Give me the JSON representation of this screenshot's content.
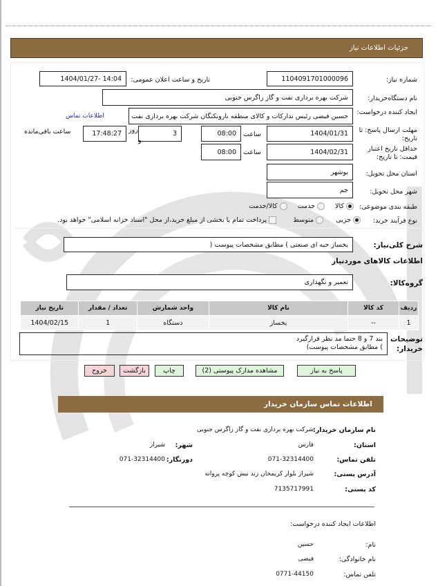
{
  "header": {
    "title": "جزئیات اطلاعات نیاز"
  },
  "form": {
    "need_number_label": "شماره نیاز:",
    "need_number": "1104091701000096",
    "announce_label": "تاریخ و ساعت اعلان عمومی:",
    "announce_value": "1404/01/27- 14:04",
    "buyer_label": "نام دستگاه‌خریدار:",
    "buyer_value": "شرکت بهره برداری نفت و گاز زاگرس جنوبی",
    "creator_label": "ایجاد کننده درخواست:",
    "creator_value": "حسین فیضی رئیس تدارکات و کالای منطقه نارونکنگان شرکت بهره برداری نفت و گاز زاگرس جنوبی",
    "creator_link": "اطلاعات تماس",
    "deadline_label": "مهلت ارسال پاسخ: تا تاریخ:",
    "deadline_date": "1404/01/31",
    "time_label": "ساعت",
    "deadline_time": "08:00",
    "days_value": "3",
    "days_label": "روز",
    "and_label": "و",
    "remaining_time": "17:48:27",
    "remaining_label": "ساعت باقی‌مانده",
    "validity_label": "حداقل تاریخ اعتبار قیمت: تا تاریخ:",
    "validity_date": "1404/02/31",
    "validity_time": "08:00",
    "province_label": "استان محل تحویل:",
    "province_value": "بوشهر",
    "city_label": "شهر محل تحویل:",
    "city_value": "جم",
    "category_label": "طبقه بندی موضوعی:",
    "category_options": [
      "کالا",
      "خدمت",
      "کالا/خدمت"
    ],
    "category_selected": "کالا",
    "process_label": "نوع فرآیند خرید:",
    "process_options": [
      "جزیی",
      "متوسط"
    ],
    "process_selected": "جزیی",
    "payment_note": "پرداخت تمام یا بخشی از مبلغ خرید،از محل \"اسناد خزانه اسلامی\" خواهد بود.",
    "summary_label": "شرح کلی‌نیاز:",
    "summary_value": "یخساز حبه ای صنعتی ) مطابق مشخصات پیوست (",
    "goods_section_title": "اطلاعات کالاهای موردنیاز",
    "goods_group_label": "گروه‌کالا:",
    "goods_group_value": "تعمیر و نگهداری",
    "buyer_notes_label": "توضیحات خریدار:",
    "buyer_notes_lines": [
      "بند 7 و 8 حتما مد نظر قرارگیرد",
      ") مطابق مشخصات پیوست)"
    ]
  },
  "table": {
    "headers": [
      "ردیف",
      "کد کالا",
      "نام کالا",
      "واحد شمارش",
      "تعداد / مقدار",
      "تاریخ نیاز"
    ],
    "rows": [
      [
        "1",
        "--",
        "یخساز",
        "دستگاه",
        "1",
        "1404/02/15"
      ]
    ]
  },
  "buttons": {
    "reply": "پاسخ به نیاز",
    "attachments": "مشاهده مدارک پیوستی (2)",
    "print": "چاپ",
    "back": "بازگشت",
    "exit": "خروج"
  },
  "contact": {
    "title": "اطلاعات تماس سازمان خریدار",
    "org_label": "نام سازمان خریدار:",
    "org_value": "شرکت بهره برداری نفت و گاز زاگرس جنوبی",
    "province_label": "استان:",
    "province_value": "فارس",
    "city_label": "شهر:",
    "city_value": "شیراز",
    "phone_label": "تلفن تماس:",
    "phone_value": "071-32314400",
    "fax_label": "دورنگار:",
    "fax_value": "071-32314400",
    "address_label": "آدرس پستی:",
    "address_value": "شیراز بلوار کریمخان زند نبش کوچه پروانه",
    "postal_label": "کد پستی:",
    "postal_value": "7135717991"
  },
  "creator": {
    "title": "اطلاعات ایجاد کننده درخواست:",
    "name_label": "نام:",
    "name_value": "حسین",
    "family_label": "نام خانوادگی:",
    "family_value": "فیضی",
    "phone_label": "تلفن تماس:",
    "phone_value": "0771-44150"
  },
  "colors": {
    "header_bar": "#8B6B3F",
    "button_green": "#dff5dc",
    "button_pink": "#f7d4d4",
    "link": "#1a2fb0"
  }
}
